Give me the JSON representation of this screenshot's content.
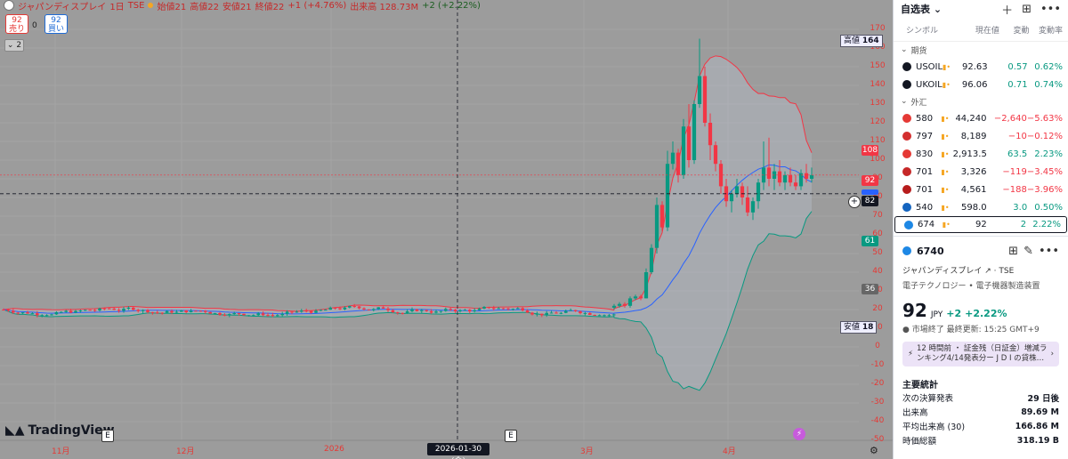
{
  "chart": {
    "legend": {
      "name": "ジャパンディスプレイ",
      "interval": "1日",
      "exchange": "TSE",
      "open": "始値21",
      "high": "高値22",
      "low": "安値21",
      "close": "終値22",
      "change": "+1 (+4.76%)",
      "volume": "出来高 128.73M",
      "volume_change": "+2 (+2.22%)"
    },
    "sell": {
      "value": "92",
      "label": "売り"
    },
    "buy": {
      "value": "92",
      "label": "買い"
    },
    "spread": "0",
    "collapse": "2",
    "high_label": "高値",
    "high_value": "164",
    "low_label": "安値",
    "low_value": "18",
    "current_price": "92",
    "crosshair_price": "82",
    "upper_band_value": "108",
    "basis_value": "82",
    "lower_band_value": "61",
    "ma_value": "36",
    "crosshair_date": "2026-01-30 (金)",
    "brand": "TradingView",
    "e_label": "E",
    "colors": {
      "up": "#089981",
      "down": "#f23645",
      "basis": "#2962ff",
      "upper": "#f23645",
      "lower": "#089981"
    }
  },
  "chart_data": {
    "type": "candlestick",
    "symbol": "ジャパンディスプレイ",
    "y_axis_ticks": [
      "170",
      "160",
      "150",
      "140",
      "130",
      "120",
      "110",
      "100",
      "90",
      "80",
      "70",
      "60",
      "50",
      "40",
      "30",
      "20",
      "10",
      "0",
      "-10",
      "-20",
      "-30",
      "-40",
      "-50"
    ],
    "x_axis_ticks": [
      "11月",
      "12月",
      "2026",
      "3月",
      "4月"
    ],
    "ylim": [
      -50,
      175
    ],
    "recent_candles": [
      {
        "o": 21,
        "h": 23,
        "l": 20,
        "c": 22
      },
      {
        "o": 22,
        "h": 24,
        "l": 21,
        "c": 23
      },
      {
        "o": 23,
        "h": 24,
        "l": 21,
        "c": 22
      },
      {
        "o": 22,
        "h": 27,
        "l": 21,
        "c": 26
      },
      {
        "o": 26,
        "h": 28,
        "l": 25,
        "c": 27
      },
      {
        "o": 27,
        "h": 28,
        "l": 25,
        "c": 26
      },
      {
        "o": 26,
        "h": 42,
        "l": 26,
        "c": 40
      },
      {
        "o": 40,
        "h": 55,
        "l": 39,
        "c": 53
      },
      {
        "o": 53,
        "h": 80,
        "l": 50,
        "c": 76
      },
      {
        "o": 76,
        "h": 78,
        "l": 62,
        "c": 64
      },
      {
        "o": 64,
        "h": 105,
        "l": 62,
        "c": 98
      },
      {
        "o": 98,
        "h": 110,
        "l": 95,
        "c": 104
      },
      {
        "o": 104,
        "h": 106,
        "l": 88,
        "c": 92
      },
      {
        "o": 92,
        "h": 122,
        "l": 90,
        "c": 118
      },
      {
        "o": 118,
        "h": 130,
        "l": 96,
        "c": 100
      },
      {
        "o": 100,
        "h": 132,
        "l": 98,
        "c": 130
      },
      {
        "o": 130,
        "h": 165,
        "l": 128,
        "c": 145
      },
      {
        "o": 145,
        "h": 150,
        "l": 118,
        "c": 120
      },
      {
        "o": 120,
        "h": 125,
        "l": 100,
        "c": 108
      },
      {
        "o": 108,
        "h": 110,
        "l": 94,
        "c": 98
      },
      {
        "o": 98,
        "h": 100,
        "l": 82,
        "c": 86
      },
      {
        "o": 86,
        "h": 90,
        "l": 75,
        "c": 78
      },
      {
        "o": 78,
        "h": 84,
        "l": 72,
        "c": 82
      },
      {
        "o": 82,
        "h": 90,
        "l": 80,
        "c": 86
      },
      {
        "o": 86,
        "h": 88,
        "l": 76,
        "c": 80
      },
      {
        "o": 80,
        "h": 86,
        "l": 70,
        "c": 72
      },
      {
        "o": 72,
        "h": 80,
        "l": 68,
        "c": 78
      },
      {
        "o": 78,
        "h": 90,
        "l": 74,
        "c": 88
      },
      {
        "o": 88,
        "h": 110,
        "l": 84,
        "c": 96
      },
      {
        "o": 96,
        "h": 112,
        "l": 86,
        "c": 90
      },
      {
        "o": 90,
        "h": 98,
        "l": 84,
        "c": 94
      },
      {
        "o": 94,
        "h": 100,
        "l": 86,
        "c": 88
      },
      {
        "o": 88,
        "h": 94,
        "l": 84,
        "c": 92
      },
      {
        "o": 92,
        "h": 96,
        "l": 86,
        "c": 88
      },
      {
        "o": 88,
        "h": 92,
        "l": 84,
        "c": 86
      },
      {
        "o": 86,
        "h": 95,
        "l": 84,
        "c": 93
      },
      {
        "o": 93,
        "h": 98,
        "l": 88,
        "c": 90
      },
      {
        "o": 90,
        "h": 96,
        "l": 88,
        "c": 92
      }
    ]
  },
  "panel": {
    "title": "自选表",
    "columns": {
      "symbol": "シンボル",
      "last": "現在値",
      "change": "変動",
      "pct": "変動率"
    },
    "sections": [
      {
        "label": "期货",
        "rows": [
          {
            "symbol": "USOIL",
            "last": "92.63",
            "change": "0.57",
            "pct": "0.62%",
            "dir": "pos",
            "logo": "#131722"
          },
          {
            "symbol": "UKOIL",
            "last": "96.06",
            "change": "0.71",
            "pct": "0.74%",
            "dir": "pos",
            "logo": "#131722"
          }
        ]
      },
      {
        "label": "外汇",
        "rows": [
          {
            "symbol": "580",
            "last": "44,240",
            "change": "−2,640",
            "pct": "−5.63%",
            "dir": "neg",
            "logo": "#e53935"
          },
          {
            "symbol": "797",
            "last": "8,189",
            "change": "−10",
            "pct": "−0.12%",
            "dir": "neg",
            "logo": "#d32f2f"
          },
          {
            "symbol": "830",
            "last": "2,913.5",
            "change": "63.5",
            "pct": "2.23%",
            "dir": "pos",
            "logo": "#e53935"
          },
          {
            "symbol": "701",
            "last": "3,326",
            "change": "−119",
            "pct": "−3.45%",
            "dir": "neg",
            "logo": "#c62828"
          },
          {
            "symbol": "701",
            "last": "4,561",
            "change": "−188",
            "pct": "−3.96%",
            "dir": "neg",
            "logo": "#b71c1c"
          },
          {
            "symbol": "540",
            "last": "598.0",
            "change": "3.0",
            "pct": "0.50%",
            "dir": "pos",
            "logo": "#1565c0"
          },
          {
            "symbol": "674",
            "last": "92",
            "change": "2",
            "pct": "2.22%",
            "dir": "pos",
            "logo": "#1e88e5",
            "selected": true
          }
        ]
      }
    ],
    "detail": {
      "symbol": "6740",
      "name": "ジャパンディスプレイ",
      "exchange": "TSE",
      "category": "電子テクノロジー • 電子機器製造装置",
      "price": "92",
      "currency": "JPY",
      "change": "+2",
      "pct": "+2.22%",
      "status": "市場終了  最終更新: 15:25 GMT+9",
      "news": "12 時間前 ・ 証金残（日証金）増減ランキング4/14発表分ー J D I の貸株…",
      "stats_title": "主要統計",
      "stats": [
        {
          "label": "次の決算発表",
          "value": "29 日後"
        },
        {
          "label": "出来高",
          "value": "89.69 M"
        },
        {
          "label": "平均出来高 (30)",
          "value": "166.86 M"
        },
        {
          "label": "時価総額",
          "value": "318.19 B"
        }
      ]
    }
  }
}
